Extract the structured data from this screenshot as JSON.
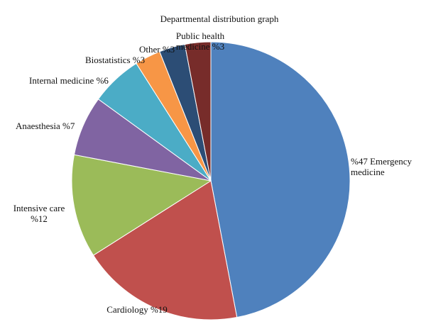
{
  "chart_data": {
    "type": "pie",
    "title": "Departmental distribution graph",
    "slices": [
      {
        "label_lines": [
          "%47 Emergency",
          "medicine"
        ],
        "value": 47,
        "color": "#4F81BD"
      },
      {
        "label_lines": [
          "Cardiology %19"
        ],
        "value": 19,
        "color": "#C0504D"
      },
      {
        "label_lines": [
          "Intensive care",
          "%12"
        ],
        "value": 12,
        "color": "#9BBB59"
      },
      {
        "label_lines": [
          "Anaesthesia %7"
        ],
        "value": 7,
        "color": "#8064A2"
      },
      {
        "label_lines": [
          "Internal medicine %6"
        ],
        "value": 6,
        "color": "#4BACC6"
      },
      {
        "label_lines": [
          "Other %3"
        ],
        "value": 3,
        "color": "#F79646"
      },
      {
        "label_lines": [
          "Biostatistics %3"
        ],
        "value": 3,
        "color": "#2C4D75"
      },
      {
        "label_lines": [
          "Public health",
          "medicine %3"
        ],
        "value": 3,
        "color": "#772C2A"
      }
    ]
  }
}
